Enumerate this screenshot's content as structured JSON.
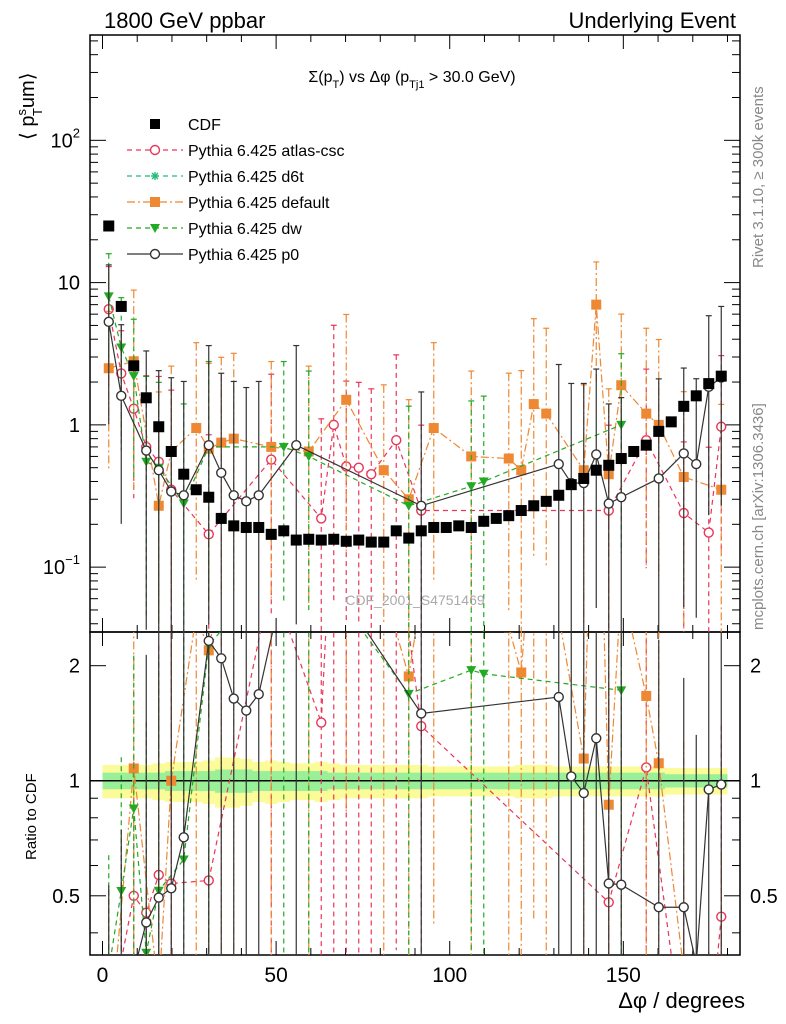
{
  "header": {
    "left": "1800 GeV ppbar",
    "right": "Underlying Event"
  },
  "title": {
    "sigma": "Σ(p",
    "sigma_sub": "T",
    "mid": ") vs Δφ (p",
    "mid_sub": "Tj1",
    "end": " > 30.0 GeV)"
  },
  "watermark": "CDF_2001_S4751469",
  "side_labels": {
    "rivet": "Rivet 3.1.10, ≥ 300k events",
    "mcplots": "mcplots.cern.ch [arXiv:1306.3436]"
  },
  "axes": {
    "y_main_label": "⟨ p",
    "y_main_sup": "s",
    "y_main_sub": "T",
    "y_main_end": "um⟩",
    "y_ratio_label": "Ratio to CDF",
    "x_label": "Δφ / degrees",
    "x_ticks": [
      "0",
      "50",
      "100",
      "150"
    ],
    "y_main_ticks": [
      "10",
      "1",
      "10",
      "10"
    ],
    "y_main_exp": [
      "−1",
      "",
      "",
      "2"
    ],
    "y_ratio_ticks": [
      "0.5",
      "1",
      "2"
    ]
  },
  "legend": [
    {
      "label": "CDF",
      "color": "#000000",
      "marker": "square-filled",
      "line": "none"
    },
    {
      "label": "Pythia 6.425 atlas-csc",
      "color": "#e8365a",
      "marker": "circle-open",
      "line": "dashed"
    },
    {
      "label": "Pythia 6.425 d6t",
      "color": "#22bb77",
      "marker": "star",
      "line": "dashed"
    },
    {
      "label": "Pythia 6.425 default",
      "color": "#ee8833",
      "marker": "square-filled",
      "line": "dashdot"
    },
    {
      "label": "Pythia 6.425 dw",
      "color": "#22aa22",
      "marker": "triangle-down",
      "line": "dashed"
    },
    {
      "label": "Pythia 6.425 p0",
      "color": "#333333",
      "marker": "circle-open",
      "line": "solid"
    }
  ],
  "chart_data": {
    "type": "scatter",
    "xlim": [
      -3.6,
      183.6
    ],
    "ylim": [
      0.035,
      550
    ],
    "ylog": true,
    "ratio_ylim": [
      0.35,
      2.45
    ],
    "ratio_ylog": true,
    "cdf": {
      "x": [
        1.8,
        5.4,
        9,
        12.6,
        16.2,
        19.8,
        23.4,
        27,
        30.6,
        34.2,
        37.8,
        41.4,
        45,
        48.6,
        52.2,
        55.8,
        59.4,
        63,
        66.6,
        70.2,
        73.8,
        77.4,
        81,
        84.6,
        88.2,
        91.8,
        95.4,
        99,
        102.6,
        106.2,
        109.8,
        113.4,
        117,
        120.6,
        124.2,
        127.8,
        131.4,
        135,
        138.6,
        142.2,
        145.8,
        149.4,
        153,
        156.6,
        160.2,
        163.8,
        167.4,
        171,
        174.6,
        178.2
      ],
      "y": [
        25,
        6.8,
        2.6,
        1.55,
        0.97,
        0.65,
        0.45,
        0.35,
        0.31,
        0.22,
        0.195,
        0.19,
        0.19,
        0.17,
        0.18,
        0.155,
        0.157,
        0.155,
        0.157,
        0.152,
        0.155,
        0.15,
        0.15,
        0.18,
        0.16,
        0.18,
        0.19,
        0.19,
        0.195,
        0.19,
        0.21,
        0.22,
        0.23,
        0.25,
        0.27,
        0.29,
        0.32,
        0.38,
        0.42,
        0.48,
        0.52,
        0.58,
        0.65,
        0.72,
        0.9,
        1.05,
        1.35,
        1.6,
        1.95,
        2.2
      ]
    },
    "series": [
      {
        "name": "Pythia 6.425 atlas-csc",
        "x": [
          1.8,
          5.4,
          9,
          12.6,
          16.2,
          19.8,
          30.6,
          48.6,
          63,
          66.6,
          70.2,
          73.8,
          77.4,
          84.6,
          91.8,
          145.8,
          156.6,
          167.4,
          174.6,
          178.2
        ],
        "y": [
          6.5,
          2.3,
          1.3,
          0.7,
          0.55,
          0.35,
          0.17,
          0.57,
          0.22,
          1.0,
          0.51,
          0.5,
          0.45,
          0.78,
          0.25,
          0.25,
          0.78,
          0.24,
          0.175,
          0.97
        ],
        "err": [
          0.3,
          0.3,
          0.35,
          0.5,
          0.6,
          0.7,
          0.7,
          0.6,
          0.7,
          0.7,
          0.6,
          0.6,
          0.6,
          0.6,
          0.6,
          0.6,
          0.5,
          0.5,
          0.6,
          0.5
        ]
      },
      {
        "name": "Pythia 6.425 default",
        "x": [
          1.8,
          9,
          16.2,
          19.8,
          27,
          30.6,
          34.2,
          37.8,
          48.6,
          59.4,
          70.2,
          81,
          88.2,
          95.4,
          106.2,
          117,
          120.6,
          124.2,
          127.8,
          138.6,
          142.2,
          145.8,
          149.4,
          156.6,
          160.2,
          167.4,
          178.2
        ],
        "y": [
          2.5,
          2.8,
          0.27,
          0.65,
          0.95,
          0.68,
          0.75,
          0.8,
          0.7,
          0.65,
          1.5,
          0.48,
          0.3,
          0.95,
          0.6,
          0.58,
          0.48,
          1.4,
          1.2,
          0.48,
          7.0,
          0.45,
          1.9,
          1.2,
          1.0,
          0.43,
          0.35
        ],
        "err": [
          0.4,
          0.5,
          0.8,
          0.6,
          0.6,
          0.6,
          0.6,
          0.6,
          0.6,
          0.6,
          0.6,
          0.6,
          0.7,
          0.6,
          0.6,
          0.6,
          0.7,
          0.6,
          0.6,
          0.6,
          0.3,
          0.6,
          0.5,
          0.6,
          0.6,
          0.6,
          0.6
        ]
      },
      {
        "name": "Pythia 6.425 dw",
        "x": [
          1.8,
          5.4,
          9,
          12.6,
          16.2,
          23.4,
          30.6,
          52.2,
          59.4,
          88.2,
          106.2,
          109.8,
          149.4
        ],
        "y": [
          8.0,
          3.5,
          2.2,
          0.55,
          0.5,
          0.28,
          0.7,
          0.7,
          0.6,
          0.27,
          0.37,
          0.4,
          1.0
        ],
        "err": [
          0.3,
          0.35,
          0.4,
          0.6,
          0.6,
          0.7,
          0.6,
          0.6,
          0.6,
          0.7,
          0.6,
          0.6,
          0.5
        ]
      },
      {
        "name": "Pythia 6.425 p0",
        "x": [
          1.8,
          5.4,
          12.6,
          16.2,
          19.8,
          23.4,
          30.6,
          34.2,
          37.8,
          41.4,
          45,
          55.8,
          91.8,
          131.4,
          135,
          138.6,
          142.2,
          145.8,
          149.4,
          160.2,
          167.4,
          171,
          174.6,
          178.2
        ],
        "y": [
          5.3,
          1.6,
          0.66,
          0.48,
          0.34,
          0.32,
          0.72,
          0.46,
          0.32,
          0.29,
          0.32,
          0.72,
          0.27,
          0.53,
          0.39,
          0.39,
          0.62,
          0.28,
          0.31,
          0.42,
          0.63,
          0.53,
          1.85,
          2.15
        ],
        "err": [
          0.4,
          0.5,
          0.7,
          0.7,
          0.8,
          0.8,
          0.7,
          0.7,
          0.8,
          0.8,
          0.8,
          0.7,
          0.8,
          0.7,
          0.7,
          0.7,
          0.6,
          0.7,
          0.7,
          0.7,
          0.6,
          0.6,
          0.5,
          0.5
        ]
      }
    ],
    "band_inner": [
      0.05,
      0.05,
      0.05,
      0.05,
      0.05,
      0.06,
      0.06,
      0.06,
      0.06,
      0.07,
      0.07,
      0.07,
      0.06,
      0.06,
      0.06,
      0.06,
      0.06,
      0.06,
      0.05,
      0.05,
      0.05,
      0.05,
      0.05,
      0.05,
      0.05,
      0.05,
      0.05,
      0.05,
      0.05,
      0.05,
      0.05,
      0.05,
      0.05,
      0.05,
      0.05,
      0.05,
      0.05,
      0.05,
      0.05,
      0.05,
      0.05,
      0.05,
      0.05,
      0.05,
      0.05,
      0.04,
      0.04,
      0.04,
      0.04,
      0.04
    ],
    "band_outer": [
      0.1,
      0.1,
      0.1,
      0.1,
      0.11,
      0.12,
      0.12,
      0.12,
      0.13,
      0.15,
      0.15,
      0.14,
      0.12,
      0.13,
      0.12,
      0.11,
      0.11,
      0.12,
      0.11,
      0.1,
      0.1,
      0.1,
      0.1,
      0.1,
      0.1,
      0.1,
      0.09,
      0.09,
      0.09,
      0.09,
      0.09,
      0.09,
      0.09,
      0.1,
      0.1,
      0.1,
      0.09,
      0.09,
      0.09,
      0.09,
      0.09,
      0.09,
      0.09,
      0.09,
      0.09,
      0.08,
      0.08,
      0.08,
      0.08,
      0.08
    ]
  }
}
